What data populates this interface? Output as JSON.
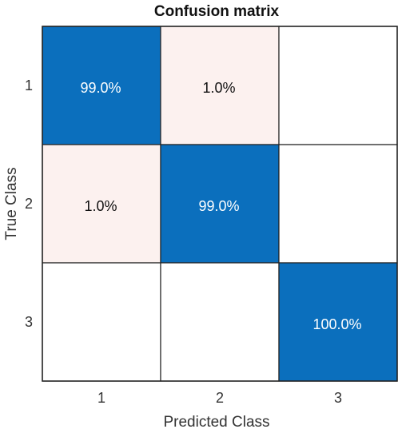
{
  "chart_data": {
    "type": "heatmap",
    "title": "Confusion matrix",
    "xlabel": "Predicted Class",
    "ylabel": "True Class",
    "x_categories": [
      "1",
      "2",
      "3"
    ],
    "y_categories": [
      "1",
      "2",
      "3"
    ],
    "values": [
      [
        99.0,
        1.0,
        null
      ],
      [
        1.0,
        99.0,
        null
      ],
      [
        null,
        null,
        100.0
      ]
    ],
    "cell_labels": [
      [
        "99.0%",
        "1.0%",
        ""
      ],
      [
        "1.0%",
        "99.0%",
        ""
      ],
      [
        "",
        "",
        "100.0%"
      ]
    ],
    "colors": {
      "diagonal": "#0b6fbd",
      "off_diagonal": "#fcf1ef",
      "empty": "#ffffff",
      "light_text": "#ffffff",
      "dark_text": "#111111",
      "grid": "#222222"
    }
  }
}
